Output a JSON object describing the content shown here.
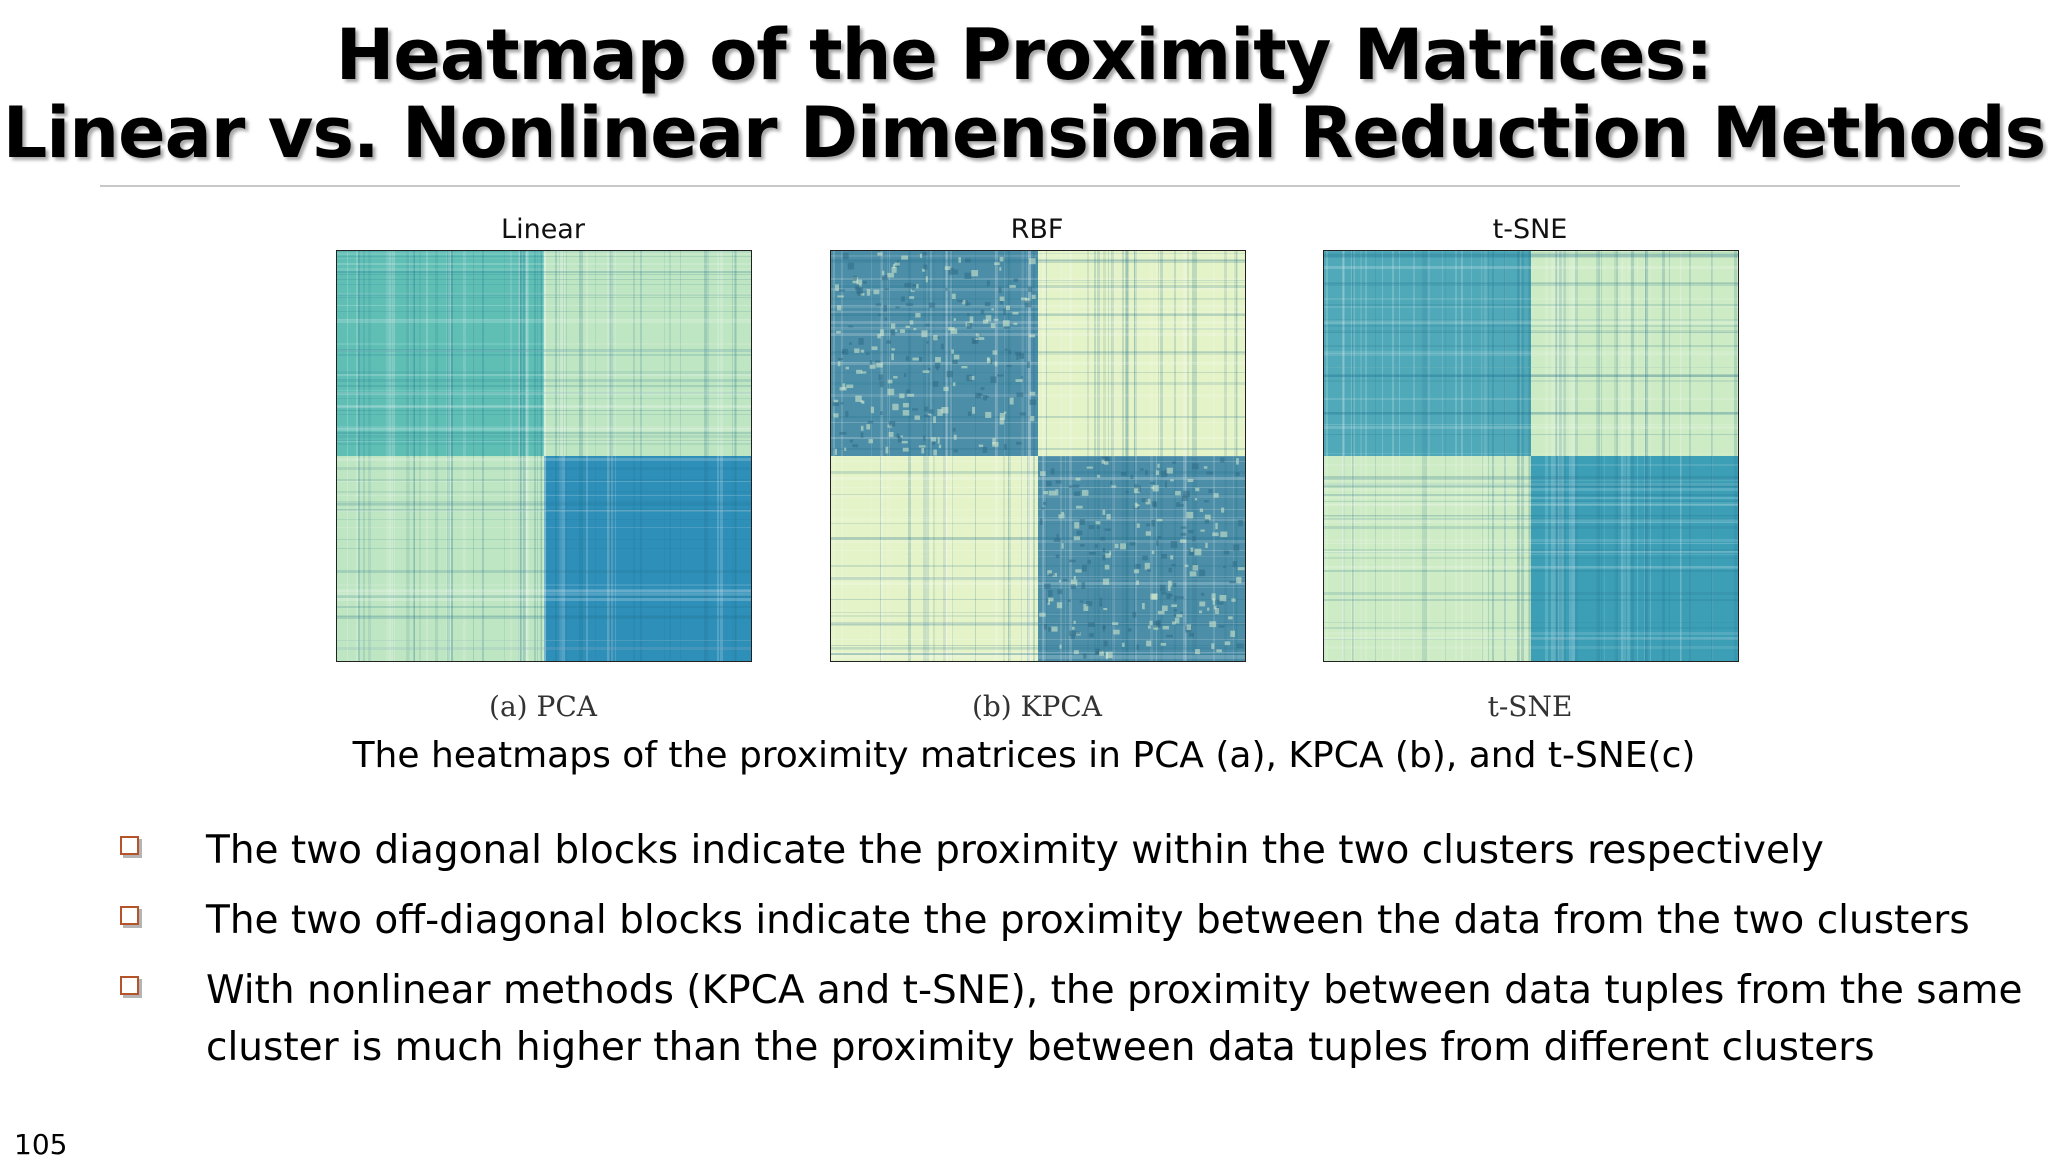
{
  "slide": {
    "title_line1": "Heatmap of the Proximity Matrices:",
    "title_line2": "Linear vs. Nonlinear Dimensional Reduction Methods",
    "page_number": "105"
  },
  "figure": {
    "heatmaps": [
      {
        "label": "Linear",
        "caption": "(a) PCA",
        "diag_color": "#5fbfb5",
        "off_color": "#bfe6c2",
        "diag_texture": "smooth",
        "second_diag_color": "#2e8fb8"
      },
      {
        "label": "RBF",
        "caption": "(b) KPCA",
        "diag_color": "#4c8ea7",
        "off_color": "#e4f3c8",
        "diag_texture": "checker",
        "second_diag_color": "#4c8ea7"
      },
      {
        "label": "t-SNE",
        "caption": "t-SNE",
        "diag_color": "#4fa9b8",
        "off_color": "#cdebc4",
        "diag_texture": "smooth",
        "second_diag_color": "#3d9fb6"
      }
    ],
    "caption": "The heatmaps of the proximity matrices in PCA (a), KPCA (b), and t-SNE(c)"
  },
  "bullets": [
    {
      "text": "The two diagonal blocks indicate the proximity within the two clusters respectively"
    },
    {
      "text": "The two off-diagonal blocks indicate the proximity between the data from the two clusters"
    },
    {
      "text": "With nonlinear methods (KPCA and t-SNE), the proximity between data tuples from the same cluster is much higher than the proximity between data tuples from different clusters"
    }
  ],
  "colors": {
    "bullet_marker": "#b5532a",
    "rule": "#c8c8c8"
  }
}
